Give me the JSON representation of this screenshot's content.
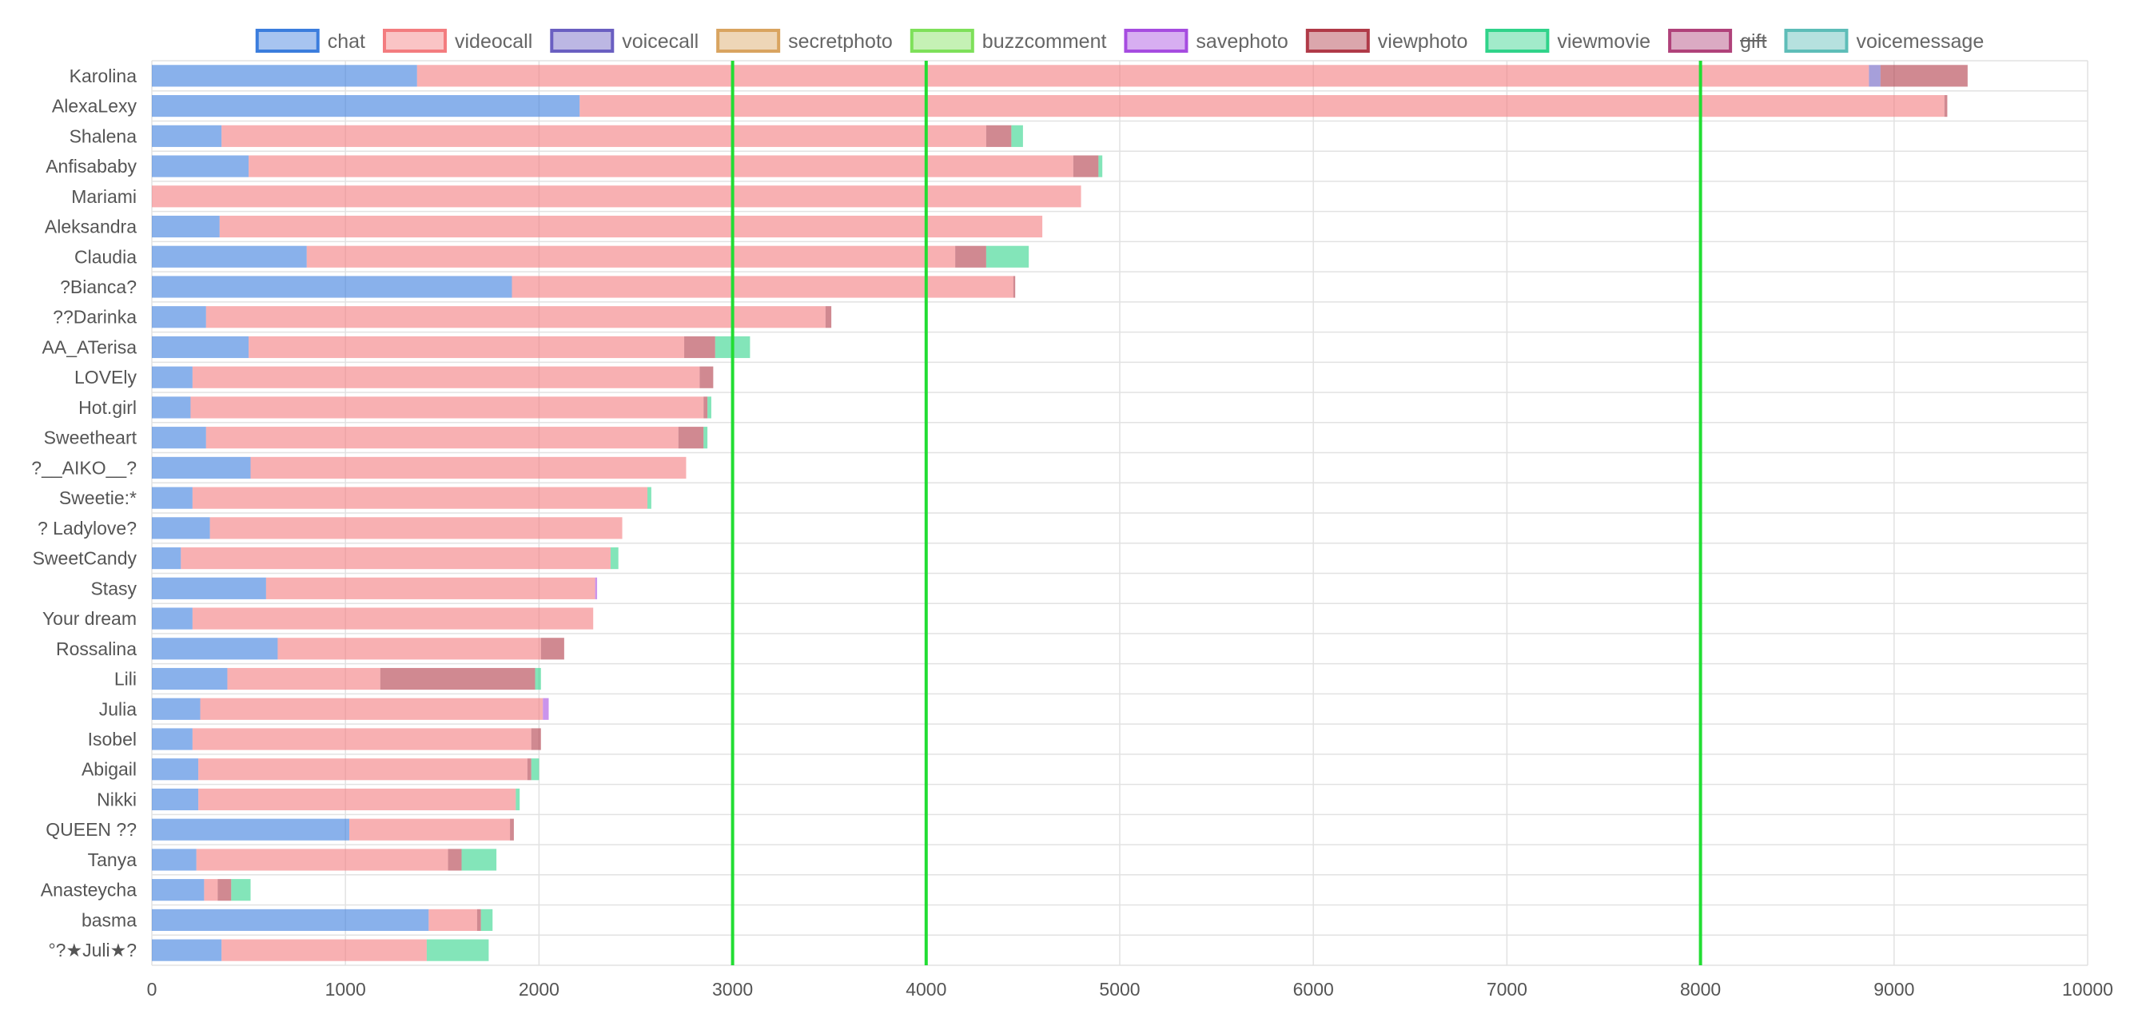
{
  "chart_data": {
    "type": "bar",
    "orientation": "horizontal",
    "stacked": true,
    "xlim": [
      0,
      10000
    ],
    "x_ticks": [
      0,
      1000,
      2000,
      3000,
      4000,
      5000,
      6000,
      7000,
      8000,
      9000,
      10000
    ],
    "grid": true,
    "legend_position": "top",
    "hidden_series": [
      "gift"
    ],
    "reference_lines": [
      {
        "value": 3000,
        "color": "#22dd33"
      },
      {
        "value": 4000,
        "color": "#22dd33"
      },
      {
        "value": 8000,
        "color": "#22dd33"
      }
    ],
    "categories": [
      "Karolina",
      "AlexaLexy",
      "Shalena",
      "Anfisababy",
      "Mariami",
      "Aleksandra",
      "Claudia",
      "?Bianca?",
      "??Darinka",
      "AA_ATerisa",
      "LOVEly",
      "Hot.girl",
      "Sweetheart",
      "?__AIKO__?",
      "Sweetie:*",
      "? Ladylove?",
      "SweetCandy",
      "Stasy",
      "Your dream",
      "Rossalina",
      "Lili",
      "Julia",
      "Isobel",
      "Abigail",
      "Nikki",
      "QUEEN ??",
      "Tanya",
      "Anasteycha",
      "basma",
      "°?★Juli★?"
    ],
    "series": [
      {
        "name": "chat",
        "color": "#3b7ddd",
        "values": [
          1370,
          2210,
          360,
          500,
          0,
          350,
          800,
          1860,
          280,
          500,
          210,
          200,
          280,
          510,
          210,
          300,
          150,
          590,
          210,
          650,
          390,
          250,
          210,
          240,
          240,
          1020,
          230,
          270,
          1430,
          360
        ]
      },
      {
        "name": "videocall",
        "color": "#f37c7f",
        "values": [
          7500,
          7050,
          3950,
          4260,
          4800,
          4250,
          3350,
          2590,
          3200,
          2250,
          2620,
          2650,
          2440,
          2250,
          2350,
          2130,
          2220,
          1700,
          2070,
          1360,
          790,
          1770,
          1750,
          1700,
          1640,
          830,
          1300,
          70,
          250,
          1060
        ]
      },
      {
        "name": "voicecall",
        "color": "#6a5fc1",
        "values": [
          60,
          0,
          0,
          0,
          0,
          0,
          0,
          0,
          0,
          0,
          0,
          0,
          0,
          0,
          0,
          0,
          0,
          0,
          0,
          0,
          0,
          0,
          0,
          0,
          0,
          0,
          0,
          0,
          0,
          0
        ]
      },
      {
        "name": "secretphoto",
        "color": "#d9a460",
        "values": [
          0,
          0,
          0,
          0,
          0,
          0,
          0,
          0,
          0,
          0,
          0,
          0,
          0,
          0,
          0,
          0,
          0,
          0,
          0,
          0,
          0,
          0,
          0,
          0,
          0,
          0,
          0,
          0,
          0,
          0
        ]
      },
      {
        "name": "buzzcomment",
        "color": "#7ee05a",
        "values": [
          0,
          0,
          0,
          0,
          0,
          0,
          0,
          0,
          0,
          0,
          0,
          0,
          0,
          0,
          0,
          0,
          0,
          0,
          0,
          0,
          0,
          0,
          0,
          0,
          0,
          0,
          0,
          0,
          0,
          0
        ]
      },
      {
        "name": "savephoto",
        "color": "#a64ce0",
        "values": [
          0,
          0,
          0,
          0,
          0,
          0,
          0,
          0,
          0,
          0,
          0,
          0,
          0,
          0,
          0,
          0,
          0,
          10,
          0,
          0,
          0,
          30,
          0,
          0,
          0,
          0,
          0,
          0,
          0,
          0
        ]
      },
      {
        "name": "viewphoto",
        "color": "#b03a48",
        "values": [
          450,
          15,
          130,
          130,
          0,
          0,
          160,
          10,
          30,
          160,
          70,
          20,
          130,
          0,
          0,
          0,
          0,
          0,
          0,
          120,
          800,
          0,
          50,
          20,
          0,
          20,
          70,
          70,
          20,
          0
        ]
      },
      {
        "name": "viewmovie",
        "color": "#30d38a",
        "values": [
          0,
          0,
          60,
          20,
          0,
          0,
          220,
          0,
          0,
          180,
          0,
          20,
          20,
          0,
          20,
          0,
          40,
          0,
          0,
          0,
          30,
          0,
          0,
          40,
          20,
          0,
          180,
          100,
          60,
          320
        ]
      },
      {
        "name": "gift",
        "color": "#b0427a",
        "values": [
          0,
          0,
          0,
          0,
          0,
          0,
          0,
          0,
          0,
          0,
          0,
          0,
          0,
          0,
          0,
          0,
          0,
          0,
          0,
          0,
          0,
          0,
          0,
          0,
          0,
          0,
          0,
          0,
          0,
          0
        ]
      },
      {
        "name": "voicemessage",
        "color": "#5ebdb8",
        "values": [
          0,
          0,
          0,
          0,
          0,
          0,
          0,
          0,
          0,
          0,
          0,
          0,
          0,
          0,
          0,
          0,
          0,
          0,
          0,
          0,
          0,
          0,
          0,
          0,
          0,
          0,
          0,
          0,
          0,
          0
        ]
      }
    ]
  }
}
